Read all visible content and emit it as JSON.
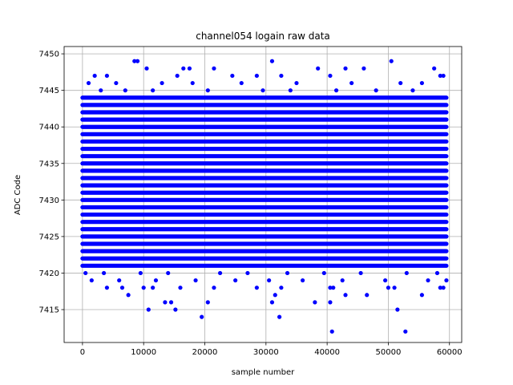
{
  "chart_data": {
    "type": "scatter",
    "title": "channel054 logain raw data",
    "xlabel": "sample number",
    "ylabel": "ADC Code",
    "xlim": [
      -3000,
      62000
    ],
    "ylim": [
      7410.5,
      7451
    ],
    "x_ticks": [
      0,
      10000,
      20000,
      30000,
      40000,
      50000,
      60000
    ],
    "y_ticks": [
      7415,
      7420,
      7425,
      7430,
      7435,
      7440,
      7445,
      7450
    ],
    "grid": true,
    "marker_color": "#0000ff",
    "series": [
      {
        "x_range": [
          0,
          59500
        ],
        "dense_levels": [
          7421,
          7422,
          7423,
          7424,
          7425,
          7426,
          7427,
          7428,
          7429,
          7430,
          7431,
          7432,
          7433,
          7434,
          7435,
          7436,
          7437,
          7438,
          7439,
          7440,
          7441,
          7442,
          7443,
          7444
        ],
        "sparse_points": [
          {
            "x": 8500,
            "y": 7449
          },
          {
            "x": 9000,
            "y": 7449
          },
          {
            "x": 31000,
            "y": 7449
          },
          {
            "x": 50500,
            "y": 7449
          },
          {
            "x": 10500,
            "y": 7448
          },
          {
            "x": 16500,
            "y": 7448
          },
          {
            "x": 17500,
            "y": 7448
          },
          {
            "x": 21500,
            "y": 7448
          },
          {
            "x": 38500,
            "y": 7448
          },
          {
            "x": 43000,
            "y": 7448
          },
          {
            "x": 46000,
            "y": 7448
          },
          {
            "x": 57500,
            "y": 7448
          },
          {
            "x": 2000,
            "y": 7447
          },
          {
            "x": 4000,
            "y": 7447
          },
          {
            "x": 15500,
            "y": 7447
          },
          {
            "x": 24500,
            "y": 7447
          },
          {
            "x": 28500,
            "y": 7447
          },
          {
            "x": 32500,
            "y": 7447
          },
          {
            "x": 40500,
            "y": 7447
          },
          {
            "x": 58500,
            "y": 7447
          },
          {
            "x": 59000,
            "y": 7447
          },
          {
            "x": 1000,
            "y": 7446
          },
          {
            "x": 5500,
            "y": 7446
          },
          {
            "x": 13000,
            "y": 7446
          },
          {
            "x": 18000,
            "y": 7446
          },
          {
            "x": 26000,
            "y": 7446
          },
          {
            "x": 35000,
            "y": 7446
          },
          {
            "x": 44000,
            "y": 7446
          },
          {
            "x": 52000,
            "y": 7446
          },
          {
            "x": 55500,
            "y": 7446
          },
          {
            "x": 3000,
            "y": 7445
          },
          {
            "x": 7000,
            "y": 7445
          },
          {
            "x": 11500,
            "y": 7445
          },
          {
            "x": 20500,
            "y": 7445
          },
          {
            "x": 29500,
            "y": 7445
          },
          {
            "x": 34000,
            "y": 7445
          },
          {
            "x": 41500,
            "y": 7445
          },
          {
            "x": 48000,
            "y": 7445
          },
          {
            "x": 54000,
            "y": 7445
          },
          {
            "x": 500,
            "y": 7420
          },
          {
            "x": 3500,
            "y": 7420
          },
          {
            "x": 9500,
            "y": 7420
          },
          {
            "x": 14000,
            "y": 7420
          },
          {
            "x": 22500,
            "y": 7420
          },
          {
            "x": 27000,
            "y": 7420
          },
          {
            "x": 33500,
            "y": 7420
          },
          {
            "x": 39500,
            "y": 7420
          },
          {
            "x": 45500,
            "y": 7420
          },
          {
            "x": 53000,
            "y": 7420
          },
          {
            "x": 58000,
            "y": 7420
          },
          {
            "x": 1500,
            "y": 7419
          },
          {
            "x": 6000,
            "y": 7419
          },
          {
            "x": 12000,
            "y": 7419
          },
          {
            "x": 18500,
            "y": 7419
          },
          {
            "x": 25000,
            "y": 7419
          },
          {
            "x": 30500,
            "y": 7419
          },
          {
            "x": 36000,
            "y": 7419
          },
          {
            "x": 42500,
            "y": 7419
          },
          {
            "x": 49500,
            "y": 7419
          },
          {
            "x": 56500,
            "y": 7419
          },
          {
            "x": 59500,
            "y": 7419
          },
          {
            "x": 4000,
            "y": 7418
          },
          {
            "x": 6500,
            "y": 7418
          },
          {
            "x": 10000,
            "y": 7418
          },
          {
            "x": 11500,
            "y": 7418
          },
          {
            "x": 16000,
            "y": 7418
          },
          {
            "x": 21500,
            "y": 7418
          },
          {
            "x": 28500,
            "y": 7418
          },
          {
            "x": 32500,
            "y": 7418
          },
          {
            "x": 40500,
            "y": 7418
          },
          {
            "x": 41000,
            "y": 7418
          },
          {
            "x": 50000,
            "y": 7418
          },
          {
            "x": 51000,
            "y": 7418
          },
          {
            "x": 58500,
            "y": 7418
          },
          {
            "x": 59000,
            "y": 7418
          },
          {
            "x": 7500,
            "y": 7417
          },
          {
            "x": 31500,
            "y": 7417
          },
          {
            "x": 43000,
            "y": 7417
          },
          {
            "x": 46500,
            "y": 7417
          },
          {
            "x": 55500,
            "y": 7417
          },
          {
            "x": 13500,
            "y": 7416
          },
          {
            "x": 14500,
            "y": 7416
          },
          {
            "x": 20500,
            "y": 7416
          },
          {
            "x": 31000,
            "y": 7416
          },
          {
            "x": 38000,
            "y": 7416
          },
          {
            "x": 40500,
            "y": 7416
          },
          {
            "x": 10800,
            "y": 7415
          },
          {
            "x": 15200,
            "y": 7415
          },
          {
            "x": 51500,
            "y": 7415
          },
          {
            "x": 19500,
            "y": 7414
          },
          {
            "x": 32200,
            "y": 7414
          },
          {
            "x": 40800,
            "y": 7412
          },
          {
            "x": 52800,
            "y": 7412
          }
        ]
      }
    ]
  }
}
